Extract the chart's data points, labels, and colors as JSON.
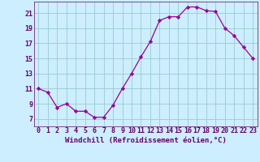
{
  "x": [
    0,
    1,
    2,
    3,
    4,
    5,
    6,
    7,
    8,
    9,
    10,
    11,
    12,
    13,
    14,
    15,
    16,
    17,
    18,
    19,
    20,
    21,
    22,
    23
  ],
  "y": [
    11.0,
    10.5,
    8.5,
    9.0,
    8.0,
    8.0,
    7.2,
    7.2,
    8.8,
    11.0,
    13.0,
    15.2,
    17.2,
    20.0,
    20.5,
    20.5,
    21.8,
    21.8,
    21.3,
    21.2,
    19.0,
    18.0,
    16.5,
    15.0
  ],
  "xlabel": "Windchill (Refroidissement éolien,°C)",
  "xlim": [
    -0.5,
    23.5
  ],
  "ylim": [
    6.0,
    22.5
  ],
  "yticks": [
    7,
    9,
    11,
    13,
    15,
    17,
    19,
    21
  ],
  "xticks": [
    0,
    1,
    2,
    3,
    4,
    5,
    6,
    7,
    8,
    9,
    10,
    11,
    12,
    13,
    14,
    15,
    16,
    17,
    18,
    19,
    20,
    21,
    22,
    23
  ],
  "line_color": "#990099",
  "marker": "D",
  "marker_size": 2.2,
  "bg_color": "#cceeff",
  "grid_color": "#99cccc",
  "tick_color": "#660066",
  "label_color": "#660066",
  "font_size": 6.0,
  "xlabel_fontsize": 6.5,
  "linewidth": 0.9
}
